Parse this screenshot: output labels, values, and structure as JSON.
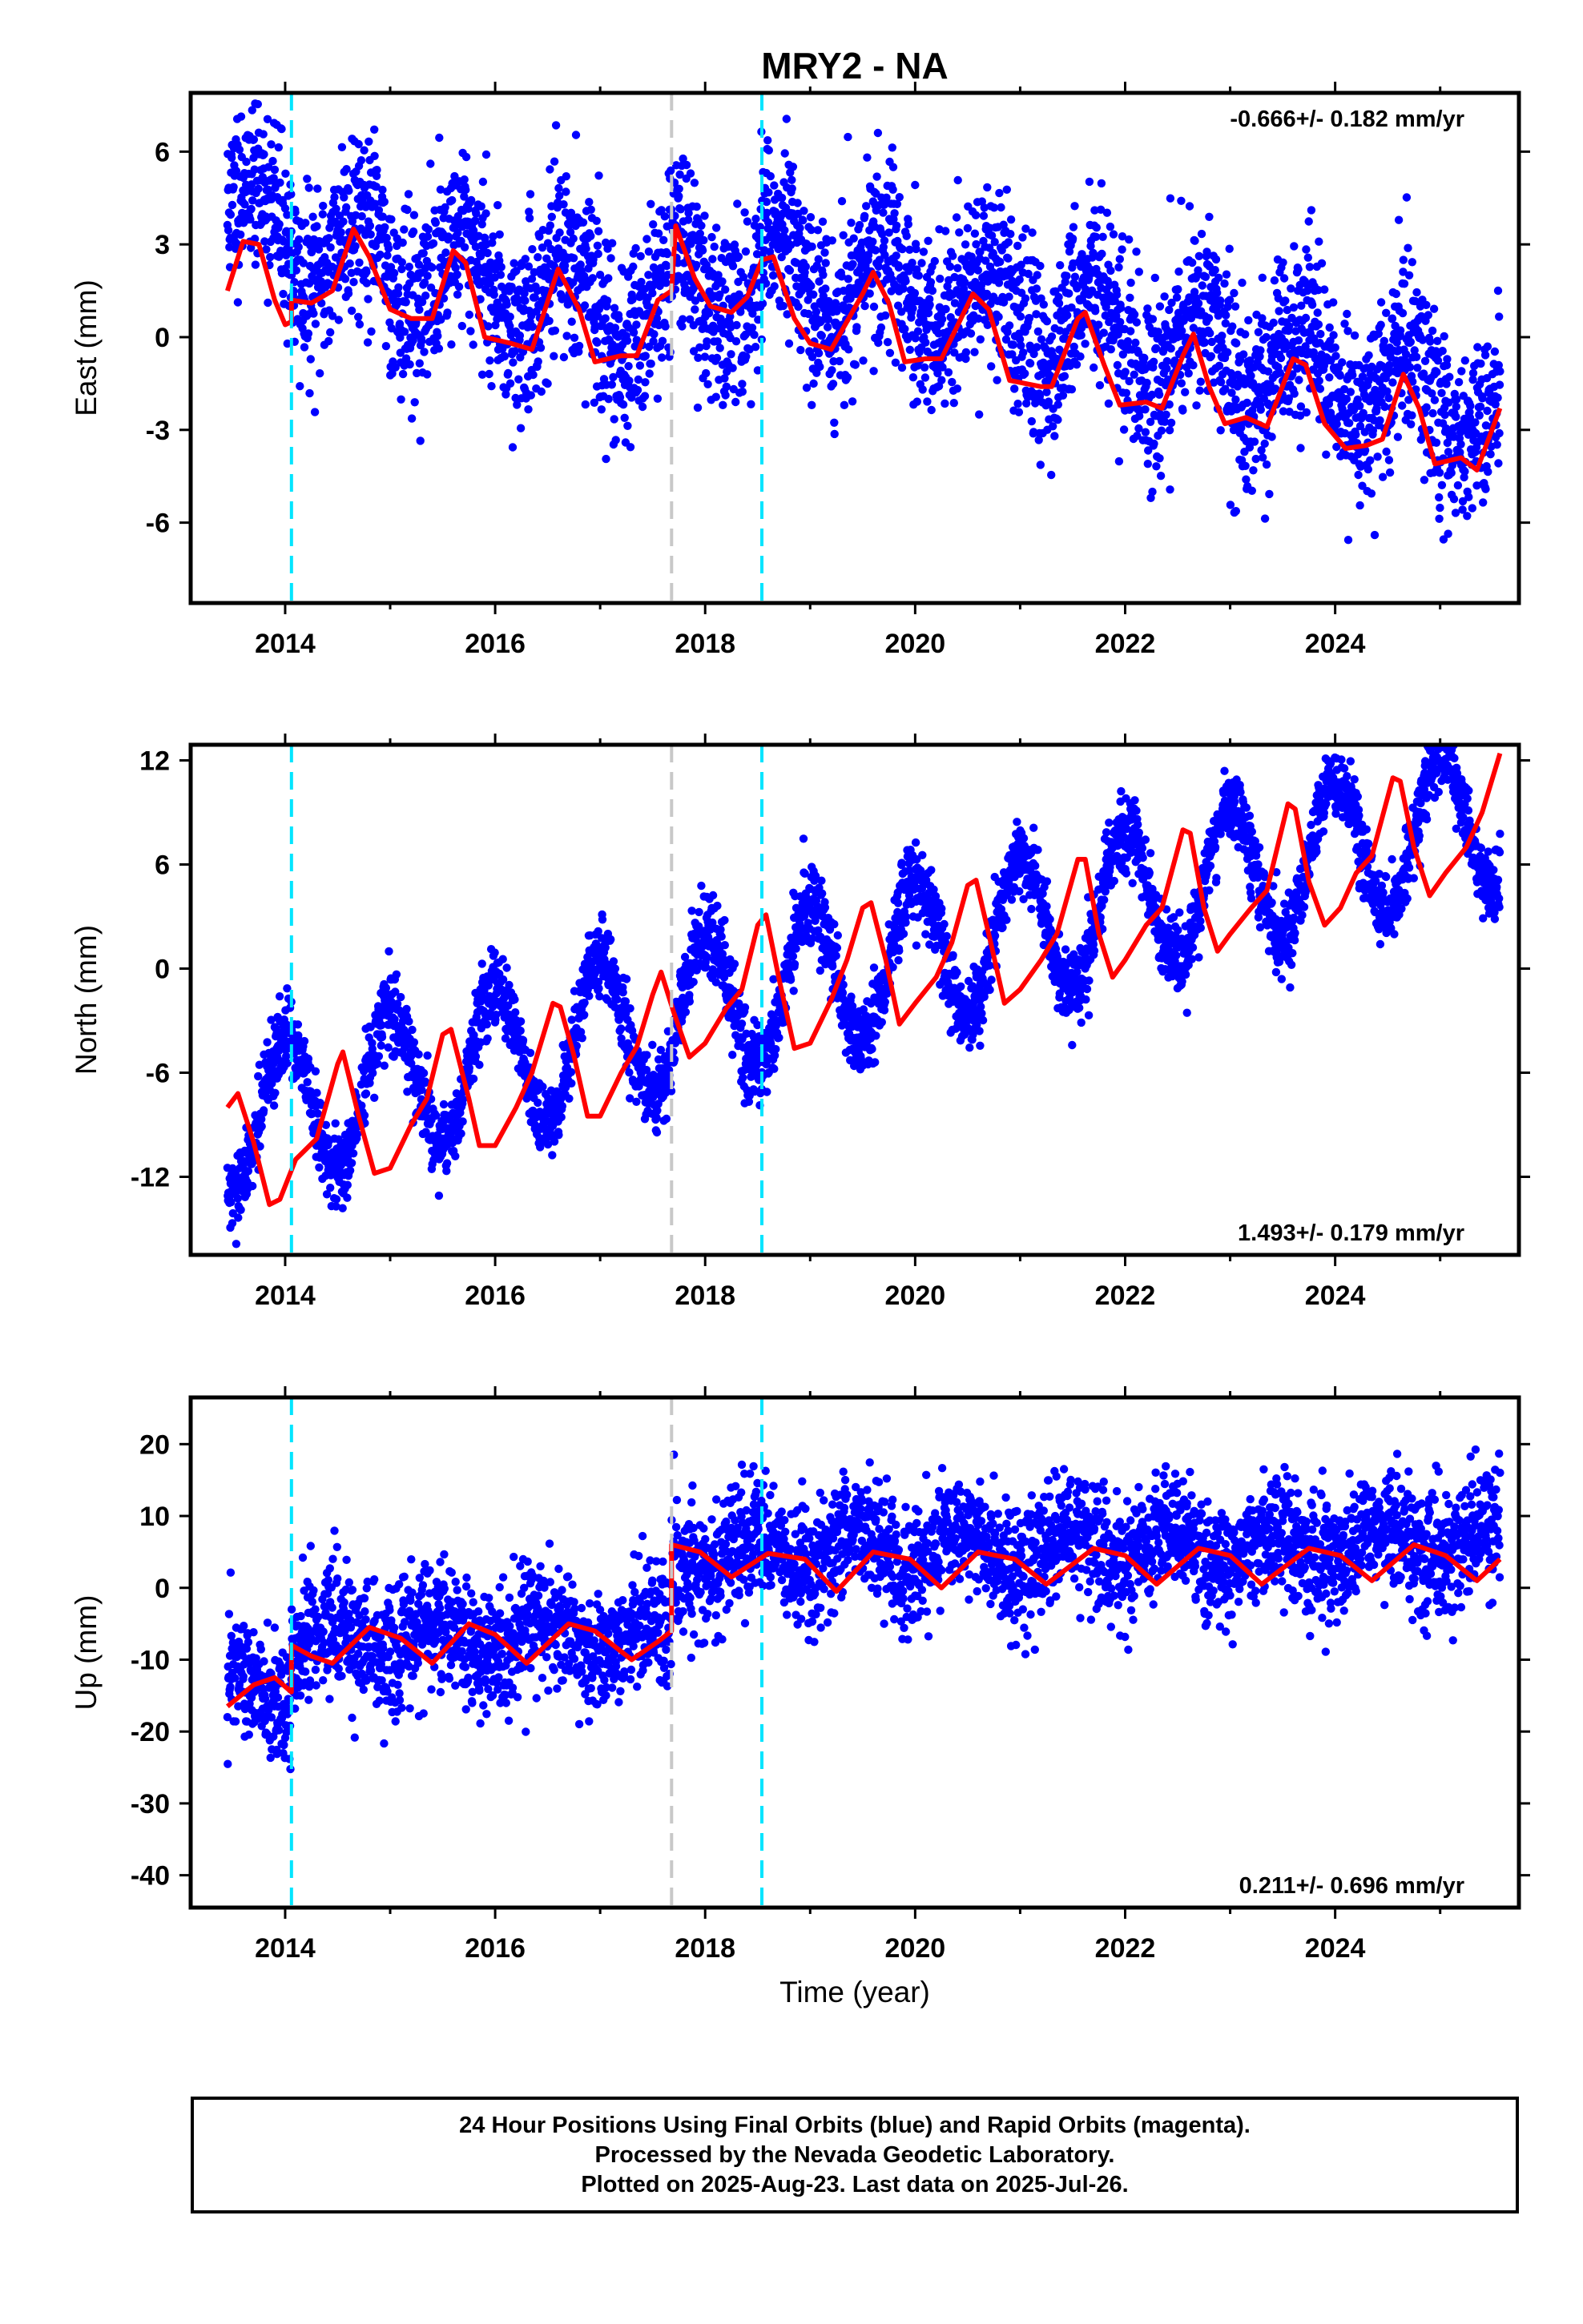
{
  "title": "MRY2 - NA",
  "xlabel": "Time (year)",
  "colors": {
    "data_points": "#0000ff",
    "model_fit": "#ff0000",
    "equipment_change": "#00e5ff",
    "earthquake": "#c8c8c8",
    "frame": "#000000"
  },
  "caption": {
    "line1": "24 Hour Positions Using Final Orbits (blue) and Rapid Orbits (magenta).",
    "line2": "Processed by the Nevada Geodetic Laboratory.",
    "line3": "Plotted on 2025-Aug-23. Last data on 2025-Jul-26."
  },
  "chart_data": [
    {
      "type": "scatter",
      "name": "East",
      "ylabel": "East (mm)",
      "rate_label": "-0.666+/- 0.182 mm/yr",
      "rate_position": "top-right",
      "xlim": [
        2013.1,
        2025.75
      ],
      "ylim": [
        -8.6,
        7.9
      ],
      "xticks": [
        2014,
        2016,
        2018,
        2020,
        2022,
        2024
      ],
      "xtick_labels": [
        "2014",
        "2016",
        "2018",
        "2020",
        "2022",
        "2024"
      ],
      "yticks": [
        -6,
        -3,
        0,
        3,
        6
      ],
      "ytick_labels": [
        "-6",
        "-3",
        "0",
        "3",
        "6"
      ],
      "vlines_dashed_cyan": [
        2014.06,
        2018.54
      ],
      "vlines_dashed_gray": [
        2017.68
      ],
      "series": [
        {
          "name": "daily positions",
          "marker": "dot",
          "start": 2013.45,
          "end": 2025.57,
          "trend_mm_per_yr": -0.666,
          "annual_amp_mm": 1.4,
          "annual_phase": 0.55,
          "scatter_mm": 1.45,
          "offsets": [
            {
              "at": 2014.06,
              "mm": -0.6
            },
            {
              "at": 2017.68,
              "mm": 1.5
            },
            {
              "at": 2018.54,
              "mm": 0.8
            }
          ],
          "seed": 11,
          "n": 3900
        },
        {
          "name": "model fit",
          "style": "line",
          "knots": [
            [
              2013.45,
              1.5
            ],
            [
              2013.6,
              3.1
            ],
            [
              2013.75,
              3.0
            ],
            [
              2013.9,
              1.2
            ],
            [
              2014.0,
              0.4
            ],
            [
              2014.06,
              0.5
            ],
            [
              2014.06,
              1.2
            ],
            [
              2014.25,
              1.1
            ],
            [
              2014.45,
              1.5
            ],
            [
              2014.65,
              3.5
            ],
            [
              2014.8,
              2.6
            ],
            [
              2015.0,
              0.9
            ],
            [
              2015.2,
              0.6
            ],
            [
              2015.4,
              0.6
            ],
            [
              2015.6,
              2.8
            ],
            [
              2015.72,
              2.4
            ],
            [
              2015.9,
              0.0
            ],
            [
              2016.15,
              -0.2
            ],
            [
              2016.35,
              -0.4
            ],
            [
              2016.6,
              2.2
            ],
            [
              2016.8,
              0.9
            ],
            [
              2016.95,
              -0.8
            ],
            [
              2017.2,
              -0.6
            ],
            [
              2017.35,
              -0.6
            ],
            [
              2017.55,
              1.2
            ],
            [
              2017.68,
              1.5
            ],
            [
              2017.72,
              3.6
            ],
            [
              2017.9,
              1.9
            ],
            [
              2018.05,
              1.0
            ],
            [
              2018.25,
              0.8
            ],
            [
              2018.4,
              1.3
            ],
            [
              2018.54,
              2.5
            ],
            [
              2018.65,
              2.6
            ],
            [
              2018.85,
              0.6
            ],
            [
              2019.0,
              -0.2
            ],
            [
              2019.2,
              -0.4
            ],
            [
              2019.5,
              1.4
            ],
            [
              2019.6,
              2.1
            ],
            [
              2019.75,
              1.1
            ],
            [
              2019.9,
              -0.8
            ],
            [
              2020.1,
              -0.7
            ],
            [
              2020.25,
              -0.7
            ],
            [
              2020.55,
              1.4
            ],
            [
              2020.7,
              0.9
            ],
            [
              2020.9,
              -1.4
            ],
            [
              2021.2,
              -1.6
            ],
            [
              2021.3,
              -1.6
            ],
            [
              2021.55,
              0.6
            ],
            [
              2021.62,
              0.8
            ],
            [
              2021.8,
              -0.9
            ],
            [
              2021.95,
              -2.2
            ],
            [
              2022.2,
              -2.1
            ],
            [
              2022.35,
              -2.3
            ],
            [
              2022.55,
              -0.6
            ],
            [
              2022.65,
              0.1
            ],
            [
              2022.8,
              -1.6
            ],
            [
              2022.95,
              -2.8
            ],
            [
              2023.15,
              -2.6
            ],
            [
              2023.35,
              -2.9
            ],
            [
              2023.6,
              -0.7
            ],
            [
              2023.72,
              -0.9
            ],
            [
              2023.9,
              -2.8
            ],
            [
              2024.1,
              -3.6
            ],
            [
              2024.3,
              -3.5
            ],
            [
              2024.45,
              -3.3
            ],
            [
              2024.65,
              -1.2
            ],
            [
              2024.8,
              -2.3
            ],
            [
              2024.95,
              -4.1
            ],
            [
              2025.2,
              -3.9
            ],
            [
              2025.35,
              -4.3
            ],
            [
              2025.57,
              -2.3
            ]
          ]
        }
      ]
    },
    {
      "type": "scatter",
      "name": "North",
      "ylabel": "North (mm)",
      "rate_label": "1.493+/- 0.179 mm/yr",
      "rate_position": "bottom-right",
      "xlim": [
        2013.1,
        2025.75
      ],
      "ylim": [
        -16.5,
        12.9
      ],
      "xticks": [
        2014,
        2016,
        2018,
        2020,
        2022,
        2024
      ],
      "xtick_labels": [
        "2014",
        "2016",
        "2018",
        "2020",
        "2022",
        "2024"
      ],
      "yticks": [
        -12,
        -6,
        0,
        6,
        12
      ],
      "ytick_labels": [
        "-12",
        "-6",
        "0",
        "6",
        "12"
      ],
      "vlines_dashed_cyan": [
        2014.06,
        2018.54
      ],
      "vlines_dashed_gray": [
        2017.68
      ],
      "series": [
        {
          "name": "daily positions",
          "marker": "dot",
          "start": 2013.45,
          "end": 2025.57,
          "trend_mm_per_yr": 1.493,
          "annual_amp_mm": 4.2,
          "annual_phase": 0.25,
          "scatter_mm": 1.1,
          "offsets": [],
          "seed": 29,
          "n": 3900
        },
        {
          "name": "model fit",
          "style": "line",
          "knots": [
            [
              2013.45,
              -8.0
            ],
            [
              2013.55,
              -7.2
            ],
            [
              2013.7,
              -10.0
            ],
            [
              2013.85,
              -13.6
            ],
            [
              2013.95,
              -13.3
            ],
            [
              2014.1,
              -11.0
            ],
            [
              2014.3,
              -9.8
            ],
            [
              2014.5,
              -5.5
            ],
            [
              2014.55,
              -4.8
            ],
            [
              2014.7,
              -8.5
            ],
            [
              2014.85,
              -11.8
            ],
            [
              2015.0,
              -11.5
            ],
            [
              2015.2,
              -9.0
            ],
            [
              2015.35,
              -7.5
            ],
            [
              2015.5,
              -3.8
            ],
            [
              2015.58,
              -3.5
            ],
            [
              2015.75,
              -7.5
            ],
            [
              2015.85,
              -10.2
            ],
            [
              2016.0,
              -10.2
            ],
            [
              2016.2,
              -8.0
            ],
            [
              2016.35,
              -6.0
            ],
            [
              2016.55,
              -2.0
            ],
            [
              2016.62,
              -2.2
            ],
            [
              2016.75,
              -5.0
            ],
            [
              2016.88,
              -8.5
            ],
            [
              2017.0,
              -8.5
            ],
            [
              2017.2,
              -6.0
            ],
            [
              2017.35,
              -4.5
            ],
            [
              2017.5,
              -1.5
            ],
            [
              2017.58,
              -0.2
            ],
            [
              2017.7,
              -2.5
            ],
            [
              2017.85,
              -5.1
            ],
            [
              2018.0,
              -4.3
            ],
            [
              2018.2,
              -2.3
            ],
            [
              2018.35,
              -1.2
            ],
            [
              2018.5,
              2.5
            ],
            [
              2018.58,
              3.1
            ],
            [
              2018.7,
              -0.5
            ],
            [
              2018.85,
              -4.6
            ],
            [
              2019.0,
              -4.3
            ],
            [
              2019.2,
              -1.8
            ],
            [
              2019.35,
              0.5
            ],
            [
              2019.5,
              3.5
            ],
            [
              2019.58,
              3.8
            ],
            [
              2019.72,
              0.5
            ],
            [
              2019.85,
              -3.2
            ],
            [
              2020.0,
              -2.0
            ],
            [
              2020.2,
              -0.5
            ],
            [
              2020.35,
              1.5
            ],
            [
              2020.5,
              4.8
            ],
            [
              2020.58,
              5.1
            ],
            [
              2020.72,
              1.5
            ],
            [
              2020.85,
              -2.0
            ],
            [
              2021.0,
              -1.2
            ],
            [
              2021.2,
              0.5
            ],
            [
              2021.35,
              2.0
            ],
            [
              2021.55,
              6.3
            ],
            [
              2021.62,
              6.3
            ],
            [
              2021.75,
              2.0
            ],
            [
              2021.88,
              -0.5
            ],
            [
              2022.0,
              0.5
            ],
            [
              2022.2,
              2.5
            ],
            [
              2022.35,
              3.5
            ],
            [
              2022.55,
              8.0
            ],
            [
              2022.62,
              7.8
            ],
            [
              2022.75,
              3.5
            ],
            [
              2022.88,
              1.0
            ],
            [
              2023.0,
              2.0
            ],
            [
              2023.2,
              3.5
            ],
            [
              2023.35,
              4.5
            ],
            [
              2023.55,
              9.5
            ],
            [
              2023.62,
              9.2
            ],
            [
              2023.75,
              5.0
            ],
            [
              2023.9,
              2.5
            ],
            [
              2024.05,
              3.5
            ],
            [
              2024.2,
              5.5
            ],
            [
              2024.35,
              6.5
            ],
            [
              2024.55,
              11.0
            ],
            [
              2024.62,
              10.8
            ],
            [
              2024.75,
              7.0
            ],
            [
              2024.9,
              4.2
            ],
            [
              2025.05,
              5.5
            ],
            [
              2025.25,
              7.0
            ],
            [
              2025.4,
              9.0
            ],
            [
              2025.57,
              12.4
            ]
          ]
        }
      ]
    },
    {
      "type": "scatter",
      "name": "Up",
      "ylabel": "Up (mm)",
      "rate_label": "0.211+/- 0.696 mm/yr",
      "rate_position": "bottom-right",
      "xlim": [
        2013.1,
        2025.75
      ],
      "ylim": [
        -44.5,
        26.5
      ],
      "xticks": [
        2014,
        2016,
        2018,
        2020,
        2022,
        2024
      ],
      "xtick_labels": [
        "2014",
        "2016",
        "2018",
        "2020",
        "2022",
        "2024"
      ],
      "yticks": [
        -40,
        -30,
        -20,
        -10,
        0,
        10,
        20
      ],
      "ytick_labels": [
        "-40",
        "-30",
        "-20",
        "-10",
        "0",
        "10",
        "20"
      ],
      "vlines_dashed_cyan": [
        2014.06,
        2018.54
      ],
      "vlines_dashed_gray": [
        2017.68
      ],
      "series": [
        {
          "name": "daily positions",
          "marker": "dot",
          "start": 2013.45,
          "end": 2025.57,
          "trend_mm_per_yr": 0.211,
          "annual_amp_mm": 2.5,
          "annual_phase": 0.8,
          "scatter_mm": 4.2,
          "offsets": [
            {
              "at": 2014.06,
              "mm": 6.0
            },
            {
              "at": 2017.68,
              "mm": 11.5
            }
          ],
          "base_mm": -12.5,
          "seed": 47,
          "n": 3900
        },
        {
          "name": "model fit",
          "style": "line",
          "knots": [
            [
              2013.45,
              -16.5
            ],
            [
              2013.7,
              -13.5
            ],
            [
              2013.9,
              -12.5
            ],
            [
              2014.06,
              -14.5
            ],
            [
              2014.06,
              -8.0
            ],
            [
              2014.25,
              -9.5
            ],
            [
              2014.45,
              -10.5
            ],
            [
              2014.8,
              -5.5
            ],
            [
              2015.1,
              -7.0
            ],
            [
              2015.4,
              -10.5
            ],
            [
              2015.75,
              -5.0
            ],
            [
              2016.0,
              -6.5
            ],
            [
              2016.3,
              -10.5
            ],
            [
              2016.7,
              -5.0
            ],
            [
              2016.95,
              -6.0
            ],
            [
              2017.3,
              -10.0
            ],
            [
              2017.55,
              -7.5
            ],
            [
              2017.68,
              -6.0
            ],
            [
              2017.68,
              6.0
            ],
            [
              2017.95,
              5.0
            ],
            [
              2018.25,
              1.5
            ],
            [
              2018.6,
              4.8
            ],
            [
              2018.95,
              4.0
            ],
            [
              2019.25,
              -0.5
            ],
            [
              2019.6,
              5.0
            ],
            [
              2019.95,
              4.0
            ],
            [
              2020.25,
              0.0
            ],
            [
              2020.6,
              5.0
            ],
            [
              2020.95,
              4.0
            ],
            [
              2021.25,
              0.5
            ],
            [
              2021.7,
              5.5
            ],
            [
              2022.0,
              4.5
            ],
            [
              2022.3,
              0.5
            ],
            [
              2022.7,
              5.5
            ],
            [
              2023.0,
              4.5
            ],
            [
              2023.3,
              0.5
            ],
            [
              2023.75,
              5.5
            ],
            [
              2024.05,
              4.5
            ],
            [
              2024.35,
              1.0
            ],
            [
              2024.75,
              6.0
            ],
            [
              2025.05,
              4.5
            ],
            [
              2025.35,
              1.0
            ],
            [
              2025.57,
              4.0
            ]
          ]
        }
      ]
    }
  ]
}
